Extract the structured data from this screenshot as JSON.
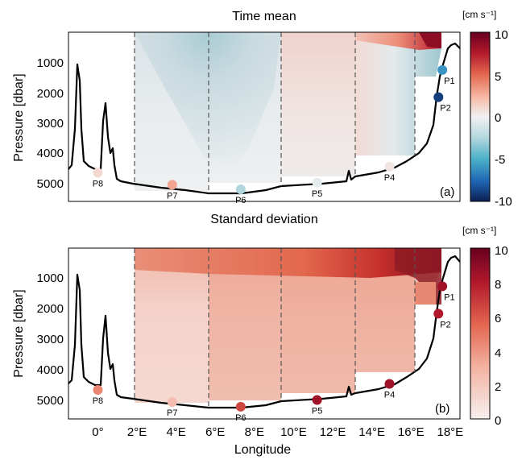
{
  "chart_data": [
    {
      "type": "heatmap",
      "panel_label": "(a)",
      "title": "Time mean",
      "ylabel": "Pressure [dbar]",
      "xlabel": "",
      "xlim": [
        -1.5,
        18.5
      ],
      "ylim": [
        5600,
        0
      ],
      "y_ticks": [
        "1000",
        "2000",
        "3000",
        "4000",
        "5000"
      ],
      "colorbar": {
        "label": "[cm s⁻¹]",
        "ticks": [
          "10",
          "5",
          "0",
          "-5",
          "-10"
        ],
        "range": [
          -10,
          10
        ],
        "colormap": "diverging-blue-red"
      },
      "moorings": [
        {
          "name": "P1",
          "lon": 17.6,
          "p": 1250,
          "value": -6
        },
        {
          "name": "P2",
          "lon": 17.4,
          "p": 2150,
          "value": -9
        },
        {
          "name": "P4",
          "lon": 14.9,
          "p": 4450,
          "value": 0.5
        },
        {
          "name": "P5",
          "lon": 11.2,
          "p": 4980,
          "value": -0.5
        },
        {
          "name": "P6",
          "lon": 7.3,
          "p": 5200,
          "value": -2.5
        },
        {
          "name": "P7",
          "lon": 3.8,
          "p": 5050,
          "value": 3
        },
        {
          "name": "P8",
          "lon": 0.0,
          "p": 4650,
          "value": 1
        }
      ]
    },
    {
      "type": "heatmap",
      "panel_label": "(b)",
      "title": "Standard deviation",
      "ylabel": "Pressure [dbar]",
      "xlabel": "Longitude",
      "xlim": [
        -1.5,
        18.5
      ],
      "ylim": [
        5600,
        0
      ],
      "y_ticks": [
        "1000",
        "2000",
        "3000",
        "4000",
        "5000"
      ],
      "x_ticks": [
        "0°",
        "2°E",
        "4°E",
        "6°E",
        "8°E",
        "10°E",
        "12°E",
        "14°E",
        "16°E",
        "18°E"
      ],
      "colorbar": {
        "label": "[cm s⁻¹]",
        "ticks": [
          "10",
          "8",
          "6",
          "4",
          "2",
          "0"
        ],
        "range": [
          0,
          10
        ],
        "colormap": "sequential-red"
      },
      "moorings": [
        {
          "name": "P1",
          "lon": 17.6,
          "p": 1250,
          "value": 8.5
        },
        {
          "name": "P2",
          "lon": 17.4,
          "p": 2150,
          "value": 8
        },
        {
          "name": "P4",
          "lon": 14.9,
          "p": 4450,
          "value": 8.5
        },
        {
          "name": "P5",
          "lon": 11.2,
          "p": 4980,
          "value": 8.5
        },
        {
          "name": "P6",
          "lon": 7.3,
          "p": 5200,
          "value": 6.5
        },
        {
          "name": "P7",
          "lon": 3.8,
          "p": 5050,
          "value": 2.5
        },
        {
          "name": "P8",
          "lon": 0.0,
          "p": 4650,
          "value": 4.5
        }
      ]
    }
  ]
}
